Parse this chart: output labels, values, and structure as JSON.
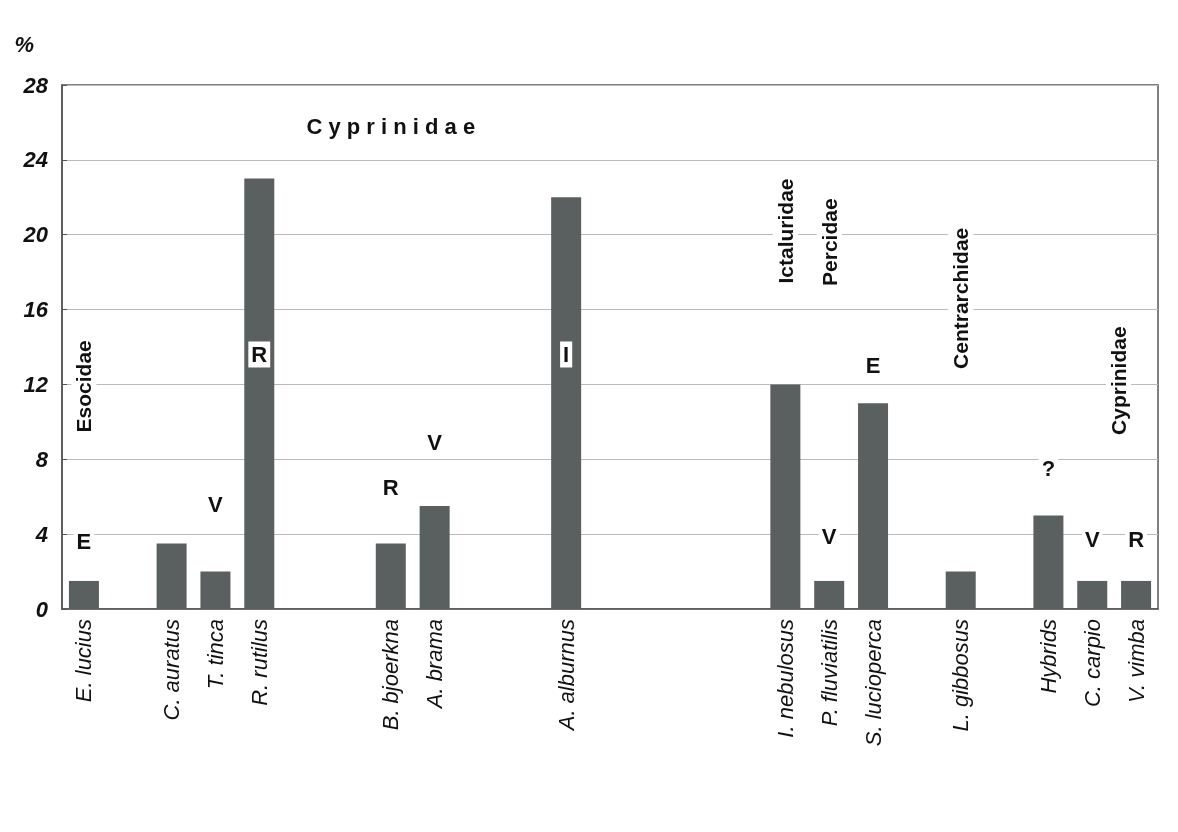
{
  "chart_data": {
    "type": "bar",
    "ylabel": "%",
    "categories": [
      "E. lucius",
      null,
      "C. auratus",
      "T. tinca",
      "R. rutilus",
      null,
      null,
      "B. bjoerkna",
      "A. brama",
      null,
      null,
      "A. alburnus",
      null,
      null,
      null,
      null,
      "I. nebulosus",
      "P. fluviatilis",
      "S. lucioperca",
      null,
      "L. gibbosus",
      null,
      "Hybrids",
      "C. carpio",
      "V. vimba"
    ],
    "values": [
      1.5,
      null,
      3.5,
      2,
      23,
      null,
      null,
      3.5,
      5.5,
      null,
      null,
      22,
      null,
      null,
      null,
      null,
      12,
      1.5,
      11,
      null,
      2,
      null,
      5,
      1.5,
      1.5
    ],
    "color": "#5a5f60",
    "ylim": [
      0,
      28
    ],
    "yticks": [
      0,
      4,
      8,
      12,
      16,
      20,
      24,
      28
    ],
    "grid": "y",
    "annotations": [
      "E",
      "Esocidae",
      "V",
      "R",
      "C y p r i n i d a e",
      "R",
      "V",
      "I",
      "Ictaluridae",
      "Percidae",
      "V",
      "E",
      "Centrarchidae",
      "?",
      "Cyprinidae",
      "V",
      "R"
    ]
  }
}
